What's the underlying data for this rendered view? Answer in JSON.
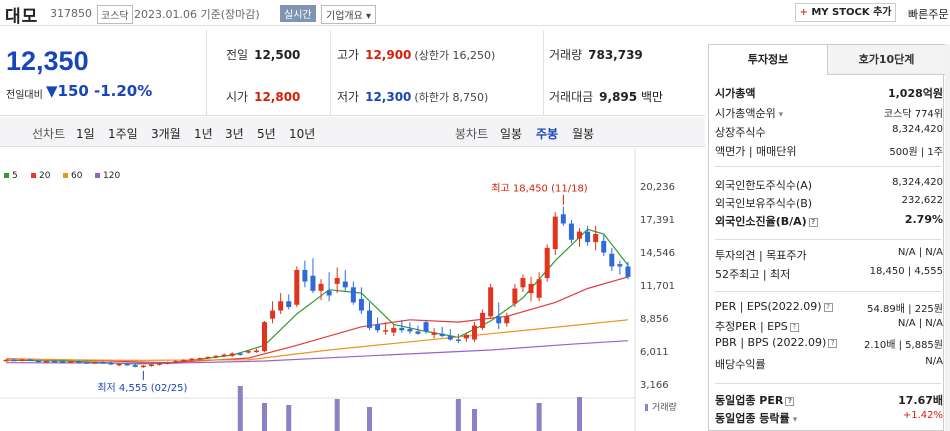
{
  "header": {
    "name": "대모",
    "code": "317850",
    "market": "코스닥",
    "date": "2023.01.06 기준(장마감)",
    "realtime": "실시간",
    "corp_info": "기업개요",
    "corp_chevron": "▾",
    "mystock_plus": "+",
    "mystock": "MY STOCK 추가",
    "quick": "빠른주문"
  },
  "quote": {
    "price": "12,350",
    "change_label": "전일대비",
    "change_arrow": "▼",
    "change": "150",
    "change_pct": "-1.20%",
    "prev_close_label": "전일",
    "prev_close": "12,500",
    "high_label": "고가",
    "high": "12,900",
    "upper_limit": "(상한가 16,250)",
    "volume_label": "거래량",
    "volume": "783,739",
    "open_label": "시가",
    "open": "12,800",
    "low_label": "저가",
    "low": "12,300",
    "lower_limit": "(하한가 8,750)",
    "amount_label": "거래대금",
    "amount": "9,895",
    "amount_unit": "백만"
  },
  "chart_tabs": {
    "line_label": "선차트",
    "line_periods": [
      "1일",
      "1주일",
      "3개월",
      "1년",
      "3년",
      "5년",
      "10년"
    ],
    "candle_label": "봉차트",
    "candle_periods": [
      "일봉",
      "주봉",
      "월봉"
    ],
    "active": "주봉"
  },
  "chart_data": {
    "type": "candlestick",
    "legend": [
      {
        "name": "5",
        "color": "#2e9e2e"
      },
      {
        "name": "20",
        "color": "#e33b3b"
      },
      {
        "name": "60",
        "color": "#f0921e"
      },
      {
        "name": "120",
        "color": "#9a62c9"
      }
    ],
    "y_ticks": [
      "20,236",
      "17,391",
      "14,546",
      "11,701",
      "8,856",
      "6,011",
      "3,166"
    ],
    "y_range": [
      3166,
      20236
    ],
    "high_annotation": "최고 18,450 (11/18)",
    "low_annotation": "최저 4,555 (02/25)",
    "volume_label": "거래량",
    "candles": [
      [
        5200,
        5300,
        5100,
        5250
      ],
      [
        5250,
        5350,
        5150,
        5200
      ],
      [
        5200,
        5300,
        5100,
        5280
      ],
      [
        5280,
        5350,
        5150,
        5180
      ],
      [
        5180,
        5250,
        5050,
        5120
      ],
      [
        5120,
        5200,
        5000,
        5150
      ],
      [
        5150,
        5250,
        5050,
        5100
      ],
      [
        5100,
        5200,
        5000,
        5060
      ],
      [
        5060,
        5150,
        4950,
        5100
      ],
      [
        5100,
        5200,
        5000,
        5050
      ],
      [
        5050,
        5120,
        4900,
        4980
      ],
      [
        5000,
        5100,
        4900,
        5050
      ],
      [
        5050,
        5150,
        4950,
        5000
      ],
      [
        5000,
        5080,
        4800,
        4850
      ],
      [
        4850,
        4950,
        4700,
        4900
      ],
      [
        4900,
        5000,
        4750,
        4800
      ],
      [
        4800,
        4900,
        4600,
        4650
      ],
      [
        4650,
        4800,
        4555,
        4750
      ],
      [
        4750,
        4900,
        4650,
        4850
      ],
      [
        4850,
        5000,
        4750,
        4950
      ],
      [
        4950,
        5100,
        4850,
        5050
      ],
      [
        5050,
        5200,
        4950,
        5150
      ],
      [
        5150,
        5300,
        5050,
        5250
      ],
      [
        5250,
        5400,
        5150,
        5350
      ],
      [
        5300,
        5450,
        5200,
        5400
      ],
      [
        5400,
        5550,
        5300,
        5500
      ],
      [
        5500,
        5650,
        5400,
        5600
      ],
      [
        5600,
        5800,
        5500,
        5700
      ],
      [
        5600,
        5900,
        5500,
        5800
      ],
      [
        5800,
        5900,
        5600,
        5700
      ],
      [
        5900,
        6100,
        5800,
        6000
      ],
      [
        6000,
        6200,
        5850,
        6050
      ],
      [
        6000,
        8600,
        5900,
        8500
      ],
      [
        8800,
        10300,
        8400,
        9500
      ],
      [
        9500,
        11000,
        9200,
        10300
      ],
      [
        10300,
        10900,
        9600,
        9800
      ],
      [
        10000,
        13300,
        9800,
        13000
      ],
      [
        13000,
        13800,
        11500,
        12000
      ],
      [
        12500,
        14000,
        11000,
        11200
      ],
      [
        11200,
        12200,
        10400,
        11800
      ],
      [
        11200,
        12800,
        10300,
        10800
      ],
      [
        11800,
        13200,
        11000,
        12300
      ],
      [
        12000,
        13000,
        11200,
        11500
      ],
      [
        11500,
        12000,
        10000,
        10200
      ],
      [
        10500,
        11500,
        9200,
        9500
      ],
      [
        9500,
        10200,
        7800,
        8000
      ],
      [
        8300,
        8900,
        7600,
        7800
      ],
      [
        7800,
        8500,
        7400,
        7800
      ],
      [
        7600,
        8300,
        7300,
        8000
      ],
      [
        8000,
        8700,
        7600,
        7800
      ],
      [
        7900,
        8500,
        7500,
        7700
      ],
      [
        7700,
        8200,
        7400,
        7500
      ],
      [
        8500,
        8700,
        7500,
        7700
      ],
      [
        7400,
        8000,
        7100,
        7600
      ],
      [
        7500,
        8100,
        7200,
        7300
      ],
      [
        7300,
        7900,
        6900,
        7000
      ],
      [
        7000,
        7500,
        6700,
        6900
      ],
      [
        7100,
        7600,
        6800,
        7400
      ],
      [
        7000,
        8500,
        6800,
        8200
      ],
      [
        8000,
        9600,
        7800,
        9300
      ],
      [
        9000,
        11800,
        8800,
        11500
      ],
      [
        9000,
        10200,
        7900,
        8400
      ],
      [
        8400,
        9300,
        8100,
        9000
      ],
      [
        10100,
        11800,
        9800,
        11400
      ],
      [
        11500,
        12600,
        11100,
        12300
      ],
      [
        11000,
        12400,
        10300,
        11800
      ],
      [
        10600,
        12800,
        10300,
        12200
      ],
      [
        12300,
        15200,
        12000,
        14900
      ],
      [
        14800,
        18000,
        14300,
        17600
      ],
      [
        17800,
        18450,
        16800,
        17000
      ],
      [
        17000,
        17300,
        15300,
        15600
      ],
      [
        15700,
        16600,
        15000,
        16300
      ],
      [
        16300,
        16800,
        15100,
        15400
      ],
      [
        15400,
        16800,
        14700,
        16100
      ],
      [
        15500,
        16000,
        14200,
        14500
      ],
      [
        14400,
        14900,
        12900,
        13300
      ],
      [
        13500,
        13800,
        12600,
        13300
      ],
      [
        13300,
        13700,
        12200,
        12400
      ]
    ],
    "ma": {
      "5": [
        [
          0,
          5220
        ],
        [
          8,
          5130
        ],
        [
          16,
          4900
        ],
        [
          20,
          4950
        ],
        [
          24,
          5300
        ],
        [
          28,
          5650
        ],
        [
          32,
          6500
        ],
        [
          36,
          9200
        ],
        [
          40,
          11300
        ],
        [
          44,
          11000
        ],
        [
          48,
          8300
        ],
        [
          52,
          7700
        ],
        [
          56,
          7200
        ],
        [
          60,
          8600
        ],
        [
          64,
          10600
        ],
        [
          68,
          13800
        ],
        [
          72,
          16500
        ],
        [
          74,
          16100
        ],
        [
          77,
          13400
        ]
      ],
      "20": [
        [
          0,
          5350
        ],
        [
          10,
          5200
        ],
        [
          20,
          5000
        ],
        [
          30,
          5400
        ],
        [
          36,
          6500
        ],
        [
          44,
          8100
        ],
        [
          50,
          8700
        ],
        [
          56,
          8500
        ],
        [
          62,
          9000
        ],
        [
          68,
          10200
        ],
        [
          72,
          11400
        ],
        [
          77,
          12400
        ]
      ],
      "60": [
        [
          0,
          5300
        ],
        [
          15,
          5200
        ],
        [
          30,
          5250
        ],
        [
          40,
          6100
        ],
        [
          50,
          6800
        ],
        [
          60,
          7500
        ],
        [
          70,
          8200
        ],
        [
          77,
          8700
        ]
      ],
      "120": [
        [
          0,
          5000
        ],
        [
          20,
          4950
        ],
        [
          32,
          5150
        ],
        [
          45,
          5600
        ],
        [
          60,
          6100
        ],
        [
          70,
          6600
        ],
        [
          77,
          6900
        ]
      ]
    },
    "volume_bars": [
      [
        29,
        45
      ],
      [
        32,
        28
      ],
      [
        35,
        26
      ],
      [
        41,
        32
      ],
      [
        45,
        24
      ],
      [
        56,
        32
      ],
      [
        58,
        22
      ],
      [
        66,
        28
      ],
      [
        71,
        34
      ]
    ]
  },
  "side": {
    "tab_active": "투자정보",
    "tab_other": "호가10단계",
    "rows": [
      {
        "k": "시가총액",
        "v": "1,028억원",
        "bold": true
      },
      {
        "k": "시가총액순위",
        "v": "코스닥 774위"
      },
      {
        "k": "상장주식수",
        "v": "8,324,420"
      },
      {
        "k": "액면가 | 매매단위",
        "v": "500원 | 1주"
      },
      {
        "k": "외국인한도주식수(A)",
        "v": "8,324,420"
      },
      {
        "k": "외국인보유주식수(B)",
        "v": "232,622"
      },
      {
        "k": "외국인소진율(B/A)",
        "v": "2.79%",
        "bold": true
      },
      {
        "k": "투자의견 | 목표주가",
        "v": "N/A | N/A"
      },
      {
        "k": "52주최고 | 최저",
        "v": "18,450 | 4,555"
      },
      {
        "k": "PER | EPS(2022.09)",
        "v": "54.89배 | 225원"
      },
      {
        "k": "추정PER | EPS",
        "v": "N/A | N/A"
      },
      {
        "k": "PBR | BPS (2022.09)",
        "v": "2.10배 | 5,885원"
      },
      {
        "k": "배당수익률",
        "v": "N/A"
      },
      {
        "k": "동일업종 PER",
        "v": "17.67배",
        "bold": true
      },
      {
        "k": "동일업종 등락률",
        "v": "+1.42%",
        "up": true
      }
    ],
    "qmark": "?",
    "chevron": "▾"
  }
}
